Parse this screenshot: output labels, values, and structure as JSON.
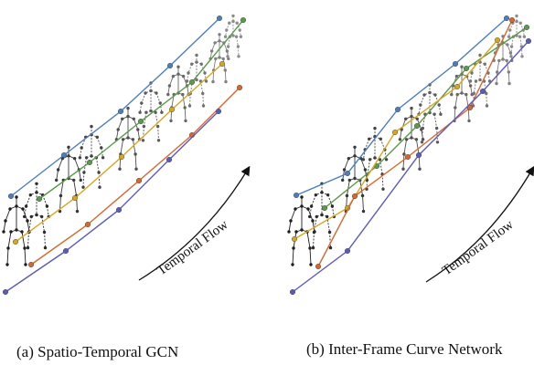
{
  "panels": [
    {
      "id": "a",
      "caption": "(a) Spatio-Temporal GCN",
      "flow_label": "Temporal Flow",
      "joint_tracks": [
        {
          "color": "#4a7fbf",
          "name": "blue"
        },
        {
          "color": "#5a9a4a",
          "name": "green"
        },
        {
          "color": "#d9a621",
          "name": "yellow"
        },
        {
          "color": "#d9662b",
          "name": "orange"
        },
        {
          "color": "#5a5bbf",
          "name": "purple"
        }
      ]
    },
    {
      "id": "b",
      "caption": "(b) Inter-Frame Curve Network",
      "flow_label": "Temporal Flow",
      "joint_tracks": [
        {
          "color": "#4a7fbf",
          "name": "blue"
        },
        {
          "color": "#5a9a4a",
          "name": "green"
        },
        {
          "color": "#d9a621",
          "name": "yellow"
        },
        {
          "color": "#d9662b",
          "name": "orange"
        },
        {
          "color": "#5a5bbf",
          "name": "purple"
        }
      ]
    }
  ]
}
